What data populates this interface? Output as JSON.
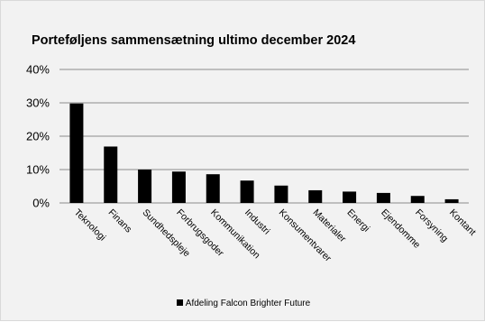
{
  "chart_data": {
    "type": "bar",
    "title": "Porteføljens sammensætning ultimo december 2024",
    "xlabel": "",
    "ylabel": "",
    "categories": [
      "Teknologi",
      "Finans",
      "Sundhedspleje",
      "Forbrugsgoder",
      "Kommunikation",
      "Industri",
      "Konsumentvarer",
      "Materialer",
      "Energi",
      "Ejendomme",
      "Forsyning",
      "Kontant"
    ],
    "series": [
      {
        "name": "Afdeling Falcon Brighter Future",
        "values": [
          29.8,
          16.9,
          10.0,
          9.4,
          8.6,
          6.7,
          5.2,
          3.8,
          3.4,
          3.0,
          2.1,
          1.1
        ],
        "color": "#000000"
      }
    ],
    "ylim": [
      0,
      40
    ],
    "yticks": [
      0,
      10,
      20,
      30,
      40
    ],
    "ytick_labels": [
      "0%",
      "10%",
      "20%",
      "30%",
      "40%"
    ],
    "grid": true,
    "legend_position": "bottom"
  }
}
